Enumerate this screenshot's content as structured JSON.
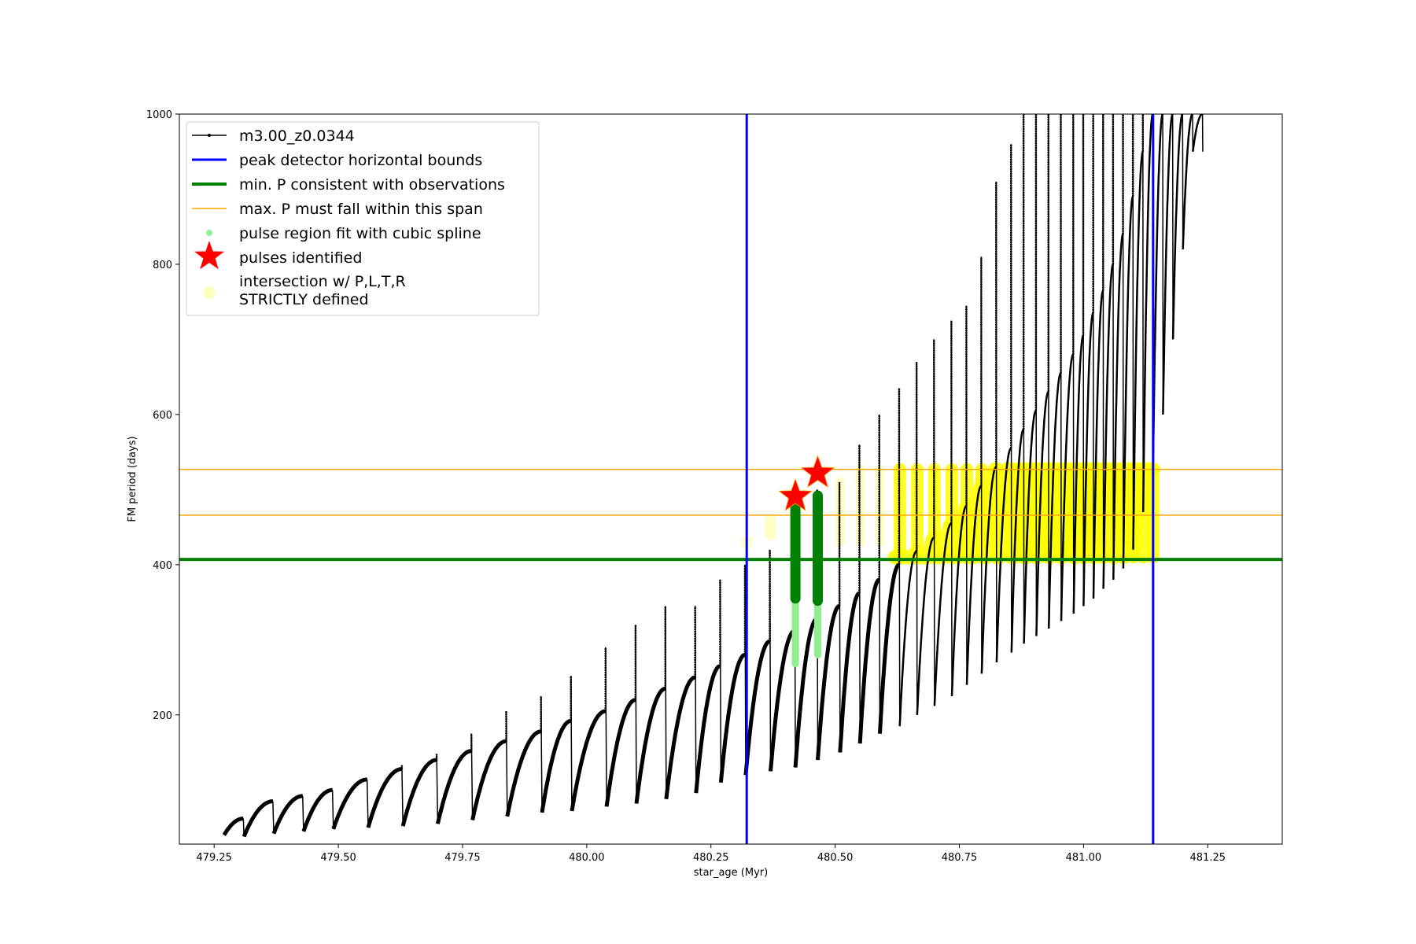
{
  "chart_data": {
    "type": "scatter",
    "xlabel": "star_age (Myr)",
    "ylabel": "FM period (days)",
    "xlim": [
      479.18,
      481.4
    ],
    "ylim": [
      28,
      1000
    ],
    "xticks": [
      {
        "value": 479.25,
        "label": "479.25"
      },
      {
        "value": 479.5,
        "label": "479.50"
      },
      {
        "value": 479.75,
        "label": "479.75"
      },
      {
        "value": 480.0,
        "label": "480.00"
      },
      {
        "value": 480.25,
        "label": "480.25"
      },
      {
        "value": 480.5,
        "label": "480.50"
      },
      {
        "value": 480.75,
        "label": "480.75"
      },
      {
        "value": 481.0,
        "label": "481.00"
      },
      {
        "value": 481.25,
        "label": "481.25"
      }
    ],
    "yticks": [
      {
        "value": 200,
        "label": "200"
      },
      {
        "value": 400,
        "label": "400"
      },
      {
        "value": 600,
        "label": "600"
      },
      {
        "value": 800,
        "label": "800"
      },
      {
        "value": 1000,
        "label": "1000"
      }
    ],
    "grid": false,
    "legend_position": "top-left",
    "colors": {
      "track": "#000000",
      "bounds": "#0000ff",
      "min_p": "#008000",
      "max_p": "#ffa500",
      "spline": "#90ee90",
      "spline_dark": "#008000",
      "pulse": "#ff0000",
      "intersection": "#ffff00",
      "intersection_light": "#ffffc0"
    },
    "pulse_cycle": [
      {
        "x0": 479.27,
        "x1": 479.31,
        "min": 40,
        "peak": 62,
        "spike": 62
      },
      {
        "x0": 479.31,
        "x1": 479.37,
        "min": 38,
        "peak": 85,
        "spike": 85
      },
      {
        "x0": 479.37,
        "x1": 479.43,
        "min": 42,
        "peak": 92,
        "spike": 92
      },
      {
        "x0": 479.43,
        "x1": 479.49,
        "min": 45,
        "peak": 100,
        "spike": 100
      },
      {
        "x0": 479.49,
        "x1": 479.56,
        "min": 48,
        "peak": 114,
        "spike": 114
      },
      {
        "x0": 479.56,
        "x1": 479.63,
        "min": 50,
        "peak": 128,
        "spike": 133
      },
      {
        "x0": 479.63,
        "x1": 479.7,
        "min": 52,
        "peak": 140,
        "spike": 148
      },
      {
        "x0": 479.7,
        "x1": 479.77,
        "min": 55,
        "peak": 152,
        "spike": 175
      },
      {
        "x0": 479.77,
        "x1": 479.84,
        "min": 60,
        "peak": 165,
        "spike": 205
      },
      {
        "x0": 479.84,
        "x1": 479.91,
        "min": 65,
        "peak": 178,
        "spike": 225
      },
      {
        "x0": 479.91,
        "x1": 479.97,
        "min": 70,
        "peak": 192,
        "spike": 252
      },
      {
        "x0": 479.97,
        "x1": 480.04,
        "min": 72,
        "peak": 205,
        "spike": 290
      },
      {
        "x0": 480.04,
        "x1": 480.1,
        "min": 78,
        "peak": 220,
        "spike": 320
      },
      {
        "x0": 480.1,
        "x1": 480.16,
        "min": 82,
        "peak": 235,
        "spike": 345
      },
      {
        "x0": 480.16,
        "x1": 480.22,
        "min": 88,
        "peak": 250,
        "spike": 345
      },
      {
        "x0": 480.22,
        "x1": 480.27,
        "min": 96,
        "peak": 265,
        "spike": 380
      },
      {
        "x0": 480.27,
        "x1": 480.32,
        "min": 110,
        "peak": 280,
        "spike": 400
      },
      {
        "x0": 480.32,
        "x1": 480.37,
        "min": 120,
        "peak": 298,
        "spike": 420
      },
      {
        "x0": 480.37,
        "x1": 480.42,
        "min": 125,
        "peak": 312,
        "spike": 462
      },
      {
        "x0": 480.42,
        "x1": 480.465,
        "min": 130,
        "peak": 328,
        "spike": 500
      },
      {
        "x0": 480.465,
        "x1": 480.51,
        "min": 140,
        "peak": 345,
        "spike": 510
      },
      {
        "x0": 480.51,
        "x1": 480.55,
        "min": 150,
        "peak": 362,
        "spike": 560
      },
      {
        "x0": 480.55,
        "x1": 480.59,
        "min": 162,
        "peak": 380,
        "spike": 600
      },
      {
        "x0": 480.59,
        "x1": 480.63,
        "min": 175,
        "peak": 400,
        "spike": 635
      },
      {
        "x0": 480.63,
        "x1": 480.665,
        "min": 185,
        "peak": 418,
        "spike": 670
      },
      {
        "x0": 480.665,
        "x1": 480.7,
        "min": 200,
        "peak": 436,
        "spike": 700
      },
      {
        "x0": 480.7,
        "x1": 480.735,
        "min": 212,
        "peak": 455,
        "spike": 725
      },
      {
        "x0": 480.735,
        "x1": 480.765,
        "min": 225,
        "peak": 478,
        "spike": 745
      },
      {
        "x0": 480.765,
        "x1": 480.795,
        "min": 240,
        "peak": 505,
        "spike": 810
      },
      {
        "x0": 480.795,
        "x1": 480.825,
        "min": 255,
        "peak": 530,
        "spike": 910
      },
      {
        "x0": 480.825,
        "x1": 480.855,
        "min": 270,
        "peak": 555,
        "spike": 960
      },
      {
        "x0": 480.855,
        "x1": 480.88,
        "min": 283,
        "peak": 580,
        "spike": 1000
      },
      {
        "x0": 480.88,
        "x1": 480.905,
        "min": 295,
        "peak": 605,
        "spike": 1000
      },
      {
        "x0": 480.905,
        "x1": 480.93,
        "min": 305,
        "peak": 630,
        "spike": 1000
      },
      {
        "x0": 480.93,
        "x1": 480.955,
        "min": 315,
        "peak": 655,
        "spike": 1000
      },
      {
        "x0": 480.955,
        "x1": 480.98,
        "min": 325,
        "peak": 680,
        "spike": 1000
      },
      {
        "x0": 480.98,
        "x1": 481.0,
        "min": 335,
        "peak": 705,
        "spike": 1000
      },
      {
        "x0": 481.0,
        "x1": 481.02,
        "min": 345,
        "peak": 735,
        "spike": 1000
      },
      {
        "x0": 481.02,
        "x1": 481.04,
        "min": 355,
        "peak": 765,
        "spike": 1000
      },
      {
        "x0": 481.04,
        "x1": 481.06,
        "min": 368,
        "peak": 800,
        "spike": 1000
      },
      {
        "x0": 481.06,
        "x1": 481.08,
        "min": 380,
        "peak": 840,
        "spike": 1000
      },
      {
        "x0": 481.08,
        "x1": 481.1,
        "min": 395,
        "peak": 890,
        "spike": 1000
      },
      {
        "x0": 481.1,
        "x1": 481.12,
        "min": 420,
        "peak": 950,
        "spike": 1000
      },
      {
        "x0": 481.12,
        "x1": 481.14,
        "min": 470,
        "peak": 1000,
        "spike": 1000
      },
      {
        "x0": 481.14,
        "x1": 481.16,
        "min": 530,
        "peak": 1000,
        "spike": 1000
      },
      {
        "x0": 481.16,
        "x1": 481.18,
        "min": 600,
        "peak": 1000,
        "spike": 1000
      },
      {
        "x0": 481.18,
        "x1": 481.2,
        "min": 700,
        "peak": 1000,
        "spike": 1000
      },
      {
        "x0": 481.2,
        "x1": 481.22,
        "min": 820,
        "peak": 1000,
        "spike": 1000
      },
      {
        "x0": 481.22,
        "x1": 481.24,
        "min": 950,
        "peak": 1000,
        "spike": 1000
      }
    ],
    "vertical_bounds": [
      480.322,
      481.14
    ],
    "min_p": 407,
    "max_p_span": [
      466,
      527
    ],
    "pulses_identified": [
      {
        "x": 480.42,
        "y": 491
      },
      {
        "x": 480.465,
        "y": 522
      }
    ],
    "spline_regions": [
      {
        "x": 480.42,
        "y_dark": [
          355,
          490
        ],
        "y_light": [
          268,
          355
        ]
      },
      {
        "x": 480.465,
        "y_dark": [
          352,
          492
        ],
        "y_light": [
          280,
          352
        ]
      }
    ],
    "intersection_region": {
      "isolated": [
        {
          "x": 480.322,
          "y0": 428,
          "y1": 432
        },
        {
          "x": 480.37,
          "y0": 440,
          "y1": 460
        }
      ],
      "columns_x_range": [
        480.5,
        481.14
      ],
      "dense_x_range": [
        480.62,
        481.14
      ],
      "y_band": [
        410,
        527
      ]
    },
    "legend": [
      {
        "key": "track",
        "label": "m3.00_z0.0344"
      },
      {
        "key": "bounds",
        "label": "peak detector horizontal bounds"
      },
      {
        "key": "min_p",
        "label": "min. P consistent with observations"
      },
      {
        "key": "max_p",
        "label": "max. P must fall within this span"
      },
      {
        "key": "spline",
        "label": "pulse region fit with cubic spline"
      },
      {
        "key": "pulse",
        "label": "pulses identified"
      },
      {
        "key": "intersection",
        "label_line1": "intersection w/ P,L,T,R",
        "label_line2": "STRICTLY defined"
      }
    ]
  }
}
